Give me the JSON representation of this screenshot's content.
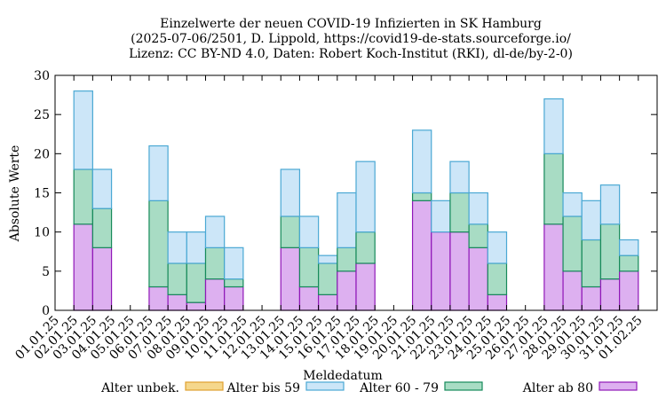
{
  "chart_data": {
    "type": "bar",
    "stacked": true,
    "title_lines": [
      "Einzelwerte der neuen COVID-19 Infizierten in SK Hamburg",
      "(2025-07-06/2501, D. Lippold, https://covid19-de-stats.sourceforge.io/",
      "Lizenz: CC BY-ND 4.0, Daten: Robert Koch-Institut (RKI), dl-de/by-2-0)"
    ],
    "xlabel": "Meldedatum",
    "ylabel": "Absolute Werte",
    "ylim": [
      0,
      30
    ],
    "yticks": [
      0,
      5,
      10,
      15,
      20,
      25,
      30
    ],
    "categories": [
      "01.01.25",
      "02.01.25",
      "03.01.25",
      "04.01.25",
      "05.01.25",
      "06.01.25",
      "07.01.25",
      "08.01.25",
      "09.01.25",
      "10.01.25",
      "11.01.25",
      "12.01.25",
      "13.01.25",
      "14.01.25",
      "15.01.25",
      "16.01.25",
      "17.01.25",
      "18.01.25",
      "19.01.25",
      "20.01.25",
      "21.01.25",
      "22.01.25",
      "23.01.25",
      "24.01.25",
      "25.01.25",
      "26.01.25",
      "27.01.25",
      "28.01.25",
      "29.01.25",
      "30.01.25",
      "31.01.25",
      "01.02.25"
    ],
    "series": [
      {
        "name": "Alter unbek.",
        "color": "#f5d78c",
        "stroke": "#e0a030",
        "values": [
          0,
          0,
          0,
          0,
          0,
          0,
          0,
          0,
          0,
          0,
          0,
          0,
          0,
          0,
          0,
          0,
          0,
          0,
          0,
          0,
          0,
          0,
          0,
          0,
          0,
          0,
          0,
          0,
          0,
          0,
          0,
          0
        ]
      },
      {
        "name": "Alter ab 80",
        "color": "#ddb0f0",
        "stroke": "#9018b8",
        "values": [
          0,
          11,
          8,
          0,
          0,
          3,
          2,
          1,
          4,
          3,
          0,
          0,
          8,
          3,
          2,
          5,
          6,
          0,
          0,
          14,
          10,
          10,
          8,
          2,
          0,
          0,
          11,
          5,
          3,
          4,
          5,
          0
        ]
      },
      {
        "name": "Alter 60 - 79",
        "color": "#a8dcc4",
        "stroke": "#168a5a",
        "values": [
          0,
          7,
          5,
          0,
          0,
          11,
          4,
          5,
          4,
          1,
          0,
          0,
          4,
          5,
          4,
          3,
          4,
          0,
          0,
          1,
          0,
          5,
          3,
          4,
          0,
          0,
          9,
          7,
          6,
          7,
          2,
          0
        ]
      },
      {
        "name": "Alter bis 59",
        "color": "#cce6f8",
        "stroke": "#4aa8d4",
        "values": [
          0,
          10,
          5,
          0,
          0,
          7,
          4,
          4,
          4,
          4,
          0,
          0,
          6,
          4,
          1,
          7,
          9,
          0,
          0,
          8,
          4,
          4,
          4,
          4,
          0,
          0,
          7,
          3,
          5,
          5,
          2,
          0
        ]
      }
    ],
    "legend": [
      {
        "name": "Alter unbek.",
        "color": "#f5d78c",
        "stroke": "#e0a030"
      },
      {
        "name": "Alter bis 59",
        "color": "#cce6f8",
        "stroke": "#4aa8d4"
      },
      {
        "name": "Alter 60 - 79",
        "color": "#a8dcc4",
        "stroke": "#168a5a"
      },
      {
        "name": "Alter ab 80",
        "color": "#ddb0f0",
        "stroke": "#9018b8"
      }
    ]
  }
}
